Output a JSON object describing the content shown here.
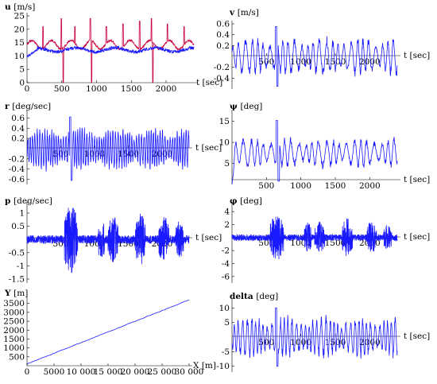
{
  "chart_data": [
    {
      "id": "u",
      "type": "line",
      "ylabel_sym": "u",
      "ylabel_unit": "[m/s]",
      "xlabel": "t [sec]",
      "xlim": [
        0,
        2400
      ],
      "ylim": [
        0,
        25
      ],
      "xticks": [
        0,
        500,
        1000,
        1500,
        2000
      ],
      "yticks": [
        0,
        5,
        10,
        15,
        20,
        25
      ],
      "series": [
        {
          "color": "#c8003c",
          "kind": "spiky",
          "base": 14.2,
          "amp": 1.6,
          "spikes": [
            [
              230,
              21
            ],
            [
              495,
              24
            ],
            [
              520,
              0
            ],
            [
              690,
              21
            ],
            [
              910,
              24
            ],
            [
              930,
              0
            ],
            [
              1140,
              21
            ],
            [
              1380,
              22
            ],
            [
              1620,
              23
            ],
            [
              1790,
              24
            ],
            [
              1810,
              0
            ],
            [
              2020,
              22
            ],
            [
              2260,
              21
            ]
          ]
        },
        {
          "color": "#1a1aff",
          "kind": "noisy",
          "base": 12.3,
          "amp": 1.3,
          "start": 9.8
        }
      ]
    },
    {
      "id": "v",
      "type": "line",
      "ylabel_sym": "v",
      "ylabel_unit": "[m/s]",
      "xlabel": "t [sec]",
      "xlim": [
        0,
        2400
      ],
      "ylim": [
        -0.6,
        0.6
      ],
      "xticks": [
        500,
        1000,
        1500,
        2000
      ],
      "yticks": [
        -0.4,
        -0.2,
        0.2,
        0.4,
        0.6
      ],
      "series": [
        {
          "color": "#1a1aff",
          "kind": "osc",
          "amp": 0.3,
          "period": 90,
          "peak": [
            [
              640,
              0.55
            ],
            [
              660,
              -0.55
            ]
          ]
        }
      ]
    },
    {
      "id": "r",
      "type": "line",
      "ylabel_sym": "r",
      "ylabel_unit": "[deg/sec]",
      "xlabel": "t [sec]",
      "xlim": [
        0,
        2400
      ],
      "ylim": [
        -0.7,
        0.7
      ],
      "xticks": [
        500,
        1000,
        1500,
        2000
      ],
      "yticks": [
        -0.6,
        -0.4,
        -0.2,
        0.2,
        0.4,
        0.6
      ],
      "series": [
        {
          "color": "#1a1aff",
          "kind": "osc",
          "amp": 0.35,
          "period": 35,
          "peak": [
            [
              640,
              0.62
            ],
            [
              660,
              -0.62
            ]
          ]
        }
      ]
    },
    {
      "id": "psi",
      "type": "line",
      "ylabel_sym": "ψ",
      "ylabel_unit": "[deg]",
      "xlabel": "t [sec]",
      "xlim": [
        0,
        2400
      ],
      "ylim": [
        0,
        17
      ],
      "xticks": [
        500,
        1000,
        1500,
        2000
      ],
      "yticks": [
        5,
        10,
        15
      ],
      "series": [
        {
          "color": "#1a1aff",
          "kind": "osc",
          "center": 7.5,
          "amp": 3.0,
          "period": 100,
          "start": 0,
          "peak": [
            [
              650,
              15.2
            ],
            [
              680,
              0.8
            ]
          ]
        }
      ]
    },
    {
      "id": "p",
      "type": "line",
      "ylabel_sym": "p",
      "ylabel_unit": "[deg/sec]",
      "xlabel": "t [sec]",
      "xlim": [
        0,
        2400
      ],
      "ylim": [
        -1.65,
        1.3
      ],
      "xticks": [
        500,
        1000,
        1500,
        2000
      ],
      "yticks": [
        -1.5,
        -1.0,
        -0.5,
        0.5,
        1.0
      ],
      "series": [
        {
          "color": "#1a1aff",
          "kind": "burst",
          "amp": 0.45,
          "bursts": [
            [
              550,
              750,
              1.3
            ],
            [
              1050,
              1150,
              0.8
            ],
            [
              1200,
              1350,
              0.9
            ],
            [
              1600,
              1750,
              1.0
            ],
            [
              1950,
              2100,
              0.9
            ],
            [
              2200,
              2320,
              0.7
            ]
          ]
        }
      ]
    },
    {
      "id": "phi",
      "type": "line",
      "ylabel_sym": "φ",
      "ylabel_unit": "[deg]",
      "xlabel": "t [sec]",
      "xlim": [
        0,
        2400
      ],
      "ylim": [
        -7,
        5
      ],
      "xticks": [
        500,
        1000,
        1500,
        2000
      ],
      "yticks": [
        -6,
        -4,
        -2,
        2,
        4
      ],
      "series": [
        {
          "color": "#1a1aff",
          "kind": "burst",
          "amp": 1.4,
          "bursts": [
            [
              550,
              750,
              3.5
            ],
            [
              1050,
              1150,
              2.5
            ],
            [
              1200,
              1350,
              2.5
            ],
            [
              1600,
              1750,
              3.0
            ],
            [
              1950,
              2100,
              2.5
            ],
            [
              2200,
              2320,
              2.0
            ]
          ]
        }
      ]
    },
    {
      "id": "Y",
      "type": "line",
      "ylabel_sym": "Y",
      "ylabel_unit": "[m]",
      "xlabel": "X [m]",
      "xlim": [
        0,
        30000
      ],
      "ylim": [
        0,
        3800
      ],
      "xticks": [
        0,
        5000,
        10000,
        15000,
        20000,
        25000,
        30000
      ],
      "xticklabels": [
        "0",
        "5000",
        "10 000",
        "15 000",
        "20 000",
        "25 000",
        "30 000"
      ],
      "yticks": [
        500,
        1000,
        1500,
        2000,
        2500,
        3000,
        3500
      ],
      "series": [
        {
          "color": "#1a1aff",
          "kind": "linear",
          "x": [
            0,
            30000
          ],
          "y": [
            100,
            3700
          ]
        }
      ]
    },
    {
      "id": "delta",
      "type": "line",
      "ylabel_sym": "delta",
      "ylabel_unit": "[deg]",
      "xlabel": "t [sec]",
      "xlim": [
        0,
        2400
      ],
      "ylim": [
        -12,
        12
      ],
      "xticks": [
        500,
        1000,
        1500,
        2000
      ],
      "yticks": [
        -10,
        -5,
        5,
        10
      ],
      "series": [
        {
          "color": "#1a1aff",
          "kind": "osc",
          "amp": 6.0,
          "period": 60,
          "peak": [
            [
              640,
              10
            ],
            [
              660,
              -10
            ]
          ]
        }
      ]
    }
  ]
}
